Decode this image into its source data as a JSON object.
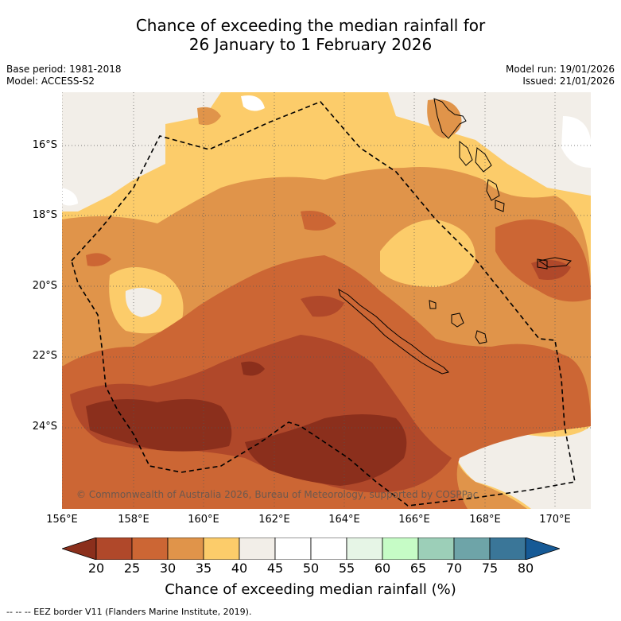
{
  "title": {
    "line1": "Chance of exceeding the median rainfall for",
    "line2": "26 January to 1 February 2026"
  },
  "meta": {
    "base_period": "Base period: 1981-2018",
    "model": "Model: ACCESS-S2",
    "model_run": "Model run: 19/01/2026",
    "issued": "Issued: 21/01/2026"
  },
  "axes": {
    "latitudes": [
      "16°S",
      "18°S",
      "20°S",
      "22°S",
      "24°S"
    ],
    "longitudes": [
      "156°E",
      "158°E",
      "160°E",
      "162°E",
      "164°E",
      "166°E",
      "168°E",
      "170°E"
    ]
  },
  "copyright": "© Commonwealth of Australia 2026, Bureau of Meteorology, supported by COSPPac",
  "colorbar": {
    "label": "Chance of exceeding median rainfall (%)",
    "ticks": [
      "20",
      "25",
      "30",
      "35",
      "40",
      "45",
      "50",
      "55",
      "60",
      "65",
      "70",
      "75",
      "80"
    ],
    "colors": [
      "#8b2f1c",
      "#b0482a",
      "#cc6634",
      "#e0944a",
      "#fccc6a",
      "#f2eee8",
      "#ffffff",
      "#ffffff",
      "#e6f5e6",
      "#c6fcc6",
      "#9ccfb8",
      "#6ea4a8",
      "#3a7698",
      "#165a96"
    ]
  },
  "legend": "--  --  -- EEZ border V11 (Flanders Marine Institute, 2019)."
}
